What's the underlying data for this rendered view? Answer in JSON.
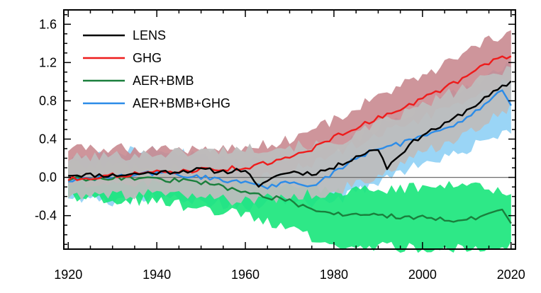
{
  "chart_data": {
    "type": "line",
    "title": "",
    "xlabel": "",
    "ylabel": "",
    "xlim": [
      1919,
      2021
    ],
    "ylim": [
      -0.75,
      1.75
    ],
    "x_ticks": [
      1920,
      1940,
      1960,
      1980,
      2000,
      2020
    ],
    "x_tick_labels": [
      "1920",
      "1940",
      "1960",
      "1980",
      "2000",
      "2020"
    ],
    "y_ticks": [
      -0.4,
      0.0,
      0.4,
      0.8,
      1.2,
      1.6
    ],
    "y_tick_labels": [
      "-0.4",
      "0.0",
      "0.4",
      "0.8",
      "1.2",
      "1.6"
    ],
    "zero_line": true,
    "legend_position": "top-left",
    "series": [
      {
        "name": "LENS",
        "color": "#000000",
        "band_color": "#bdbdbd",
        "points": [
          [
            1920,
            0.03
          ],
          [
            1930,
            0.02
          ],
          [
            1940,
            0.05
          ],
          [
            1950,
            0.08
          ],
          [
            1955,
            0.06
          ],
          [
            1960,
            0.08
          ],
          [
            1963,
            -0.12
          ],
          [
            1965,
            -0.02
          ],
          [
            1970,
            0.06
          ],
          [
            1975,
            0.04
          ],
          [
            1980,
            0.1
          ],
          [
            1985,
            0.22
          ],
          [
            1990,
            0.3
          ],
          [
            1992,
            0.1
          ],
          [
            1995,
            0.25
          ],
          [
            2000,
            0.45
          ],
          [
            2005,
            0.55
          ],
          [
            2010,
            0.7
          ],
          [
            2015,
            0.85
          ],
          [
            2020,
            1.0
          ]
        ],
        "band_upper": [
          [
            1920,
            0.2
          ],
          [
            1940,
            0.25
          ],
          [
            1960,
            0.3
          ],
          [
            1980,
            0.35
          ],
          [
            1990,
            0.55
          ],
          [
            2000,
            0.75
          ],
          [
            2010,
            0.95
          ],
          [
            2020,
            1.15
          ]
        ],
        "band_lower": [
          [
            1920,
            -0.2
          ],
          [
            1940,
            -0.18
          ],
          [
            1960,
            -0.25
          ],
          [
            1980,
            -0.15
          ],
          [
            1990,
            0.0
          ],
          [
            2000,
            0.25
          ],
          [
            2010,
            0.45
          ],
          [
            2020,
            0.75
          ]
        ]
      },
      {
        "name": "GHG",
        "color": "#ee1c1c",
        "band_color": "#c98a90",
        "points": [
          [
            1920,
            -0.02
          ],
          [
            1930,
            0.02
          ],
          [
            1940,
            0.05
          ],
          [
            1950,
            0.08
          ],
          [
            1960,
            0.1
          ],
          [
            1970,
            0.2
          ],
          [
            1975,
            0.3
          ],
          [
            1980,
            0.42
          ],
          [
            1990,
            0.62
          ],
          [
            2000,
            0.82
          ],
          [
            2010,
            1.05
          ],
          [
            2015,
            1.2
          ],
          [
            2020,
            1.28
          ]
        ],
        "band_upper": [
          [
            1960,
            0.3
          ],
          [
            1970,
            0.4
          ],
          [
            1980,
            0.6
          ],
          [
            1990,
            0.85
          ],
          [
            2000,
            1.05
          ],
          [
            2010,
            1.3
          ],
          [
            2020,
            1.55
          ]
        ],
        "band_lower": [
          [
            1960,
            -0.05
          ],
          [
            1970,
            0.05
          ],
          [
            1980,
            0.25
          ],
          [
            1990,
            0.45
          ],
          [
            2000,
            0.62
          ],
          [
            2010,
            0.8
          ],
          [
            2020,
            1.02
          ]
        ]
      },
      {
        "name": "AER+BMB",
        "color": "#1a7f3c",
        "band_color": "#17e67a",
        "points": [
          [
            1920,
            -0.02
          ],
          [
            1930,
            0.0
          ],
          [
            1940,
            -0.02
          ],
          [
            1950,
            -0.05
          ],
          [
            1960,
            -0.15
          ],
          [
            1970,
            -0.25
          ],
          [
            1975,
            -0.35
          ],
          [
            1980,
            -0.38
          ],
          [
            1990,
            -0.4
          ],
          [
            2000,
            -0.42
          ],
          [
            2010,
            -0.45
          ],
          [
            2018,
            -0.35
          ],
          [
            2020,
            -0.5
          ]
        ],
        "band_upper": [
          [
            1920,
            0.15
          ],
          [
            1940,
            0.12
          ],
          [
            1960,
            0.0
          ],
          [
            1980,
            -0.15
          ],
          [
            2000,
            -0.1
          ],
          [
            2010,
            -0.05
          ],
          [
            2020,
            -0.15
          ]
        ],
        "band_lower": [
          [
            1920,
            -0.2
          ],
          [
            1940,
            -0.25
          ],
          [
            1960,
            -0.4
          ],
          [
            1980,
            -0.7
          ],
          [
            2000,
            -0.75
          ],
          [
            2010,
            -0.75
          ],
          [
            2020,
            -0.7
          ]
        ]
      },
      {
        "name": "AER+BMB+GHG",
        "color": "#2c8ce8",
        "band_color": "#8fd0f5",
        "points": [
          [
            1920,
            -0.03
          ],
          [
            1930,
            0.0
          ],
          [
            1940,
            0.05
          ],
          [
            1950,
            0.0
          ],
          [
            1960,
            -0.05
          ],
          [
            1965,
            -0.1
          ],
          [
            1970,
            -0.05
          ],
          [
            1975,
            -0.1
          ],
          [
            1980,
            0.05
          ],
          [
            1985,
            0.2
          ],
          [
            1990,
            0.3
          ],
          [
            1995,
            0.35
          ],
          [
            2000,
            0.45
          ],
          [
            2005,
            0.5
          ],
          [
            2010,
            0.62
          ],
          [
            2015,
            0.8
          ],
          [
            2018,
            0.9
          ],
          [
            2020,
            0.75
          ]
        ],
        "band_upper": [
          [
            1920,
            0.15
          ],
          [
            1930,
            0.25
          ],
          [
            1940,
            0.3
          ],
          [
            1960,
            0.15
          ],
          [
            1980,
            0.3
          ],
          [
            2000,
            0.75
          ],
          [
            2010,
            0.95
          ],
          [
            2020,
            1.2
          ]
        ],
        "band_lower": [
          [
            1920,
            -0.2
          ],
          [
            1930,
            -0.25
          ],
          [
            1940,
            -0.2
          ],
          [
            1960,
            -0.3
          ],
          [
            1980,
            -0.25
          ],
          [
            2000,
            0.15
          ],
          [
            2010,
            0.3
          ],
          [
            2020,
            0.5
          ]
        ]
      }
    ]
  }
}
